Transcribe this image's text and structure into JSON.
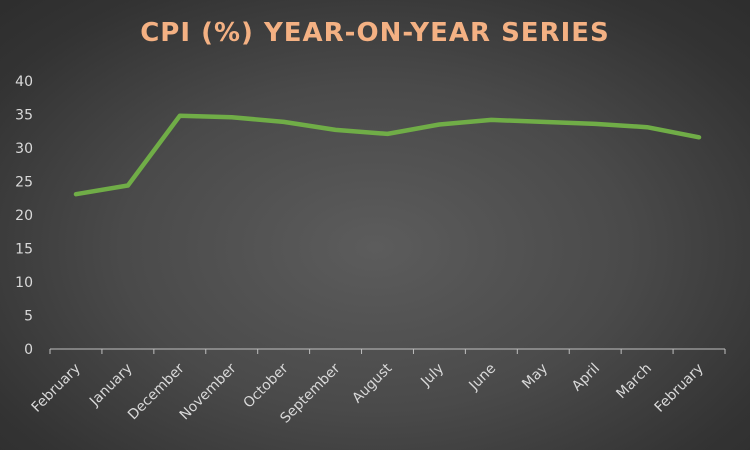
{
  "chart_data": {
    "type": "line",
    "title": "CPI (%) YEAR-ON-YEAR SERIES",
    "xlabel": "",
    "ylabel": "",
    "categories": [
      "February",
      "January",
      "December",
      "November",
      "October",
      "September",
      "August",
      "July",
      "June",
      "May",
      "April",
      "March",
      "February"
    ],
    "series": [
      {
        "values": [
          23.1,
          24.4,
          34.8,
          34.6,
          33.9,
          32.7,
          32.1,
          33.5,
          34.2,
          33.9,
          33.6,
          33.1,
          31.6
        ]
      }
    ],
    "ylim": [
      0,
      40
    ],
    "yticks": [
      "0",
      "5",
      "10",
      "15",
      "20",
      "25",
      "30",
      "35",
      "40"
    ],
    "grid": false,
    "legend": "none",
    "colors": {
      "line": "#70ad47",
      "title": "#f4b183",
      "axis": "#bfbfbf",
      "text": "#d9d9d9"
    }
  }
}
